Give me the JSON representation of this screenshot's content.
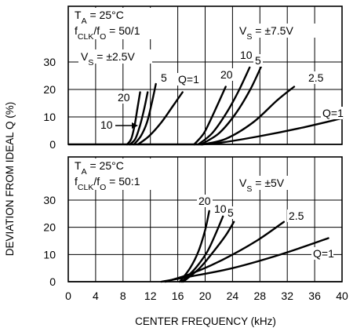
{
  "chart_data": {
    "type": "line",
    "xlabel": "CENTER FREQUENCY (kHz)",
    "ylabel": "DEVIATION FROM IDEAL Q (%)",
    "xlim": [
      0,
      40
    ],
    "x_ticks": [
      "0",
      "4",
      "8",
      "12",
      "16",
      "20",
      "24",
      "28",
      "32",
      "36",
      "40"
    ],
    "grid": true,
    "panels": [
      {
        "id": "top",
        "ylim": [
          0,
          35
        ],
        "y_ticks": [
          "0",
          "10",
          "20",
          "30"
        ],
        "conditions": {
          "ta": {
            "main": "T",
            "sub": "A",
            "rest": " = 25°C"
          },
          "ratio": {
            "f1": "f",
            "s1": "CLK",
            "mid": "/f",
            "s2": "O",
            "rest": " = 50/1"
          },
          "vs_group_a": {
            "main": "V",
            "sub": "S",
            "rest": " = ±2.5V"
          },
          "vs_group_b": {
            "main": "V",
            "sub": "S",
            "rest": " = ±7.5V"
          }
        },
        "series": [
          {
            "name": "20",
            "group": "±2.5V",
            "x": [
              8.6,
              9.2,
              9.7,
              10.1,
              10.5
            ],
            "y": [
              0,
              2,
              7,
              13,
              19
            ]
          },
          {
            "name": "10",
            "group": "±2.5V",
            "x": [
              9.0,
              9.8,
              10.5,
              11.1,
              11.6
            ],
            "y": [
              0,
              2,
              7,
              13,
              19
            ]
          },
          {
            "name": "5",
            "group": "±2.5V",
            "x": [
              9.6,
              10.6,
              11.5,
              12.2,
              12.8
            ],
            "y": [
              0,
              3,
              8,
              15,
              22
            ]
          },
          {
            "name": "Q=1",
            "group": "±2.5V",
            "x": [
              10.2,
              11.8,
              13.6,
              15.3,
              16.7
            ],
            "y": [
              0,
              3,
              8,
              14,
              19
            ]
          },
          {
            "name": "20",
            "group": "±7.5V",
            "x": [
              18.4,
              19.8,
              21.0,
              22.1,
              23.0
            ],
            "y": [
              0,
              4,
              10,
              16,
              21
            ]
          },
          {
            "name": "10",
            "group": "±7.5V",
            "x": [
              19.0,
              21.0,
              23.0,
              24.8,
              26.5
            ],
            "y": [
              0,
              4,
              11,
              19,
              28
            ]
          },
          {
            "name": "5",
            "group": "±7.5V",
            "x": [
              19.4,
              22.0,
              24.4,
              26.6,
              28.3
            ],
            "y": [
              0,
              4,
              11,
              20,
              29
            ]
          },
          {
            "name": "2.5",
            "group": "±7.5V",
            "x": [
              19.6,
              23.0,
              27.0,
              30.5,
              33.0
            ],
            "y": [
              0,
              2,
              8,
              16,
              21
            ]
          },
          {
            "name": "Q=1",
            "group": "±7.5V",
            "x": [
              19.6,
              22.0,
              28.0,
              34.0,
              40.0
            ],
            "y": [
              0,
              0.5,
              3,
              6,
              9.5
            ]
          }
        ]
      },
      {
        "id": "bottom",
        "ylim": [
          0,
          35
        ],
        "y_ticks": [
          "0",
          "10",
          "20",
          "30"
        ],
        "conditions": {
          "ta": {
            "main": "T",
            "sub": "A",
            "rest": " = 25°C"
          },
          "ratio": {
            "f1": "f",
            "s1": "CLK",
            "mid": "/f",
            "s2": "O",
            "rest": " = 50:1"
          },
          "vs": {
            "main": "V",
            "sub": "S",
            "rest": " = ±5V"
          }
        },
        "series": [
          {
            "name": "20",
            "x": [
              16.3,
              17.8,
              19.0,
              20.0,
              20.6
            ],
            "y": [
              0,
              5,
              11,
              19,
              26
            ]
          },
          {
            "name": "10",
            "x": [
              16.6,
              18.6,
              20.3,
              21.6,
              22.6
            ],
            "y": [
              0,
              5,
              11,
              18,
              24
            ]
          },
          {
            "name": "5",
            "x": [
              16.8,
              19.2,
              21.2,
              23.0,
              24.2
            ],
            "y": [
              0,
              5,
              11,
              17,
              22
            ]
          },
          {
            "name": "2.5",
            "x": [
              14.2,
              18.0,
              22.5,
              27.5,
              31.5
            ],
            "y": [
              0,
              3,
              8,
              15,
              22
            ]
          },
          {
            "name": "Q=1",
            "x": [
              13.6,
              18.0,
              24.0,
              31.0,
              38.0
            ],
            "y": [
              0,
              2,
              5,
              10,
              16
            ]
          }
        ]
      }
    ],
    "annotations": {
      "top_label_10": "10"
    }
  }
}
